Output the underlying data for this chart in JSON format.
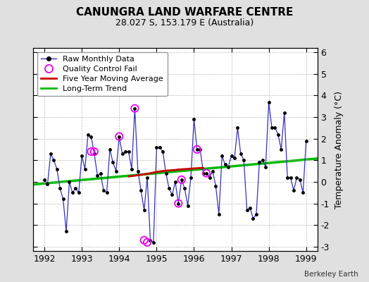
{
  "title": "CANUNGRA LAND WARFARE CENTRE",
  "subtitle": "28.027 S, 153.179 E (Australia)",
  "ylabel": "Temperature Anomaly (°C)",
  "watermark": "Berkeley Earth",
  "xlim": [
    1991.7,
    1999.3
  ],
  "ylim": [
    -3.2,
    6.2
  ],
  "yticks": [
    -3,
    -2,
    -1,
    0,
    1,
    2,
    3,
    4,
    5,
    6
  ],
  "xticks": [
    1992,
    1993,
    1994,
    1995,
    1996,
    1997,
    1998,
    1999
  ],
  "bg_color": "#e0e0e0",
  "plot_bg_color": "#ffffff",
  "raw_x": [
    1992.0,
    1992.083,
    1992.167,
    1992.25,
    1992.333,
    1992.417,
    1992.5,
    1992.583,
    1992.667,
    1992.75,
    1992.833,
    1992.917,
    1993.0,
    1993.083,
    1993.167,
    1993.25,
    1993.333,
    1993.417,
    1993.5,
    1993.583,
    1993.667,
    1993.75,
    1993.833,
    1993.917,
    1994.0,
    1994.083,
    1994.167,
    1994.25,
    1994.333,
    1994.417,
    1994.5,
    1994.583,
    1994.667,
    1994.75,
    1994.833,
    1994.917,
    1995.0,
    1995.083,
    1995.167,
    1995.25,
    1995.333,
    1995.417,
    1995.5,
    1995.583,
    1995.667,
    1995.75,
    1995.833,
    1995.917,
    1996.0,
    1996.083,
    1996.167,
    1996.25,
    1996.333,
    1996.417,
    1996.5,
    1996.583,
    1996.667,
    1996.75,
    1996.833,
    1996.917,
    1997.0,
    1997.083,
    1997.167,
    1997.25,
    1997.333,
    1997.417,
    1997.5,
    1997.583,
    1997.667,
    1997.75,
    1997.833,
    1997.917,
    1998.0,
    1998.083,
    1998.167,
    1998.25,
    1998.333,
    1998.417,
    1998.5,
    1998.583,
    1998.667,
    1998.75,
    1998.833,
    1998.917,
    1999.0
  ],
  "raw_y": [
    0.1,
    -0.1,
    1.3,
    1.0,
    0.6,
    -0.3,
    -0.8,
    -2.3,
    0.0,
    -0.5,
    -0.3,
    -0.5,
    1.2,
    0.6,
    2.2,
    2.1,
    1.3,
    0.3,
    0.4,
    -0.4,
    -0.5,
    1.5,
    0.9,
    0.5,
    2.1,
    1.3,
    1.4,
    1.4,
    0.6,
    3.4,
    0.5,
    -0.4,
    -1.3,
    0.2,
    -2.7,
    -2.8,
    1.6,
    1.6,
    1.4,
    0.4,
    -0.3,
    -0.6,
    0.0,
    -1.0,
    0.1,
    -0.3,
    -1.1,
    0.2,
    2.9,
    1.5,
    1.5,
    0.4,
    0.4,
    0.2,
    0.5,
    -0.2,
    -1.5,
    1.2,
    0.8,
    0.7,
    1.2,
    1.1,
    2.5,
    1.3,
    1.0,
    -1.3,
    -1.2,
    -1.7,
    -1.5,
    0.9,
    1.0,
    0.7,
    3.7,
    2.5,
    2.5,
    2.2,
    1.5,
    3.2,
    0.2,
    0.2,
    -0.4,
    0.2,
    0.1,
    -0.5,
    1.9
  ],
  "qc_fail_x": [
    1994.417,
    1993.25,
    1993.333,
    1994.0,
    1994.667,
    1994.75,
    1995.583,
    1995.667,
    1996.083,
    1996.333
  ],
  "qc_fail_y": [
    3.4,
    1.4,
    1.4,
    2.1,
    -2.7,
    -2.8,
    -1.0,
    0.1,
    1.5,
    0.4
  ],
  "moving_avg_x": [
    1994.25,
    1994.333,
    1994.417,
    1994.5,
    1994.583,
    1994.667,
    1994.75,
    1994.833,
    1994.917,
    1995.0,
    1995.083,
    1995.167,
    1995.25,
    1995.333,
    1995.417,
    1995.5,
    1995.583,
    1995.667,
    1995.75,
    1995.833,
    1995.917,
    1996.0,
    1996.083,
    1996.167,
    1996.25
  ],
  "moving_avg_y": [
    0.25,
    0.27,
    0.29,
    0.31,
    0.33,
    0.35,
    0.37,
    0.4,
    0.43,
    0.46,
    0.48,
    0.5,
    0.52,
    0.53,
    0.54,
    0.55,
    0.57,
    0.58,
    0.59,
    0.6,
    0.61,
    0.62,
    0.63,
    0.64,
    0.65
  ],
  "trend_x": [
    1991.7,
    1999.3
  ],
  "trend_y": [
    -0.12,
    1.08
  ],
  "line_color": "#3333bb",
  "marker_color": "#000000",
  "qc_color": "#ee00ee",
  "moving_avg_color": "#cc0000",
  "trend_color": "#00bb00",
  "legend_fontsize": 8,
  "title_fontsize": 11,
  "subtitle_fontsize": 9,
  "tick_fontsize": 9,
  "ylabel_fontsize": 9
}
